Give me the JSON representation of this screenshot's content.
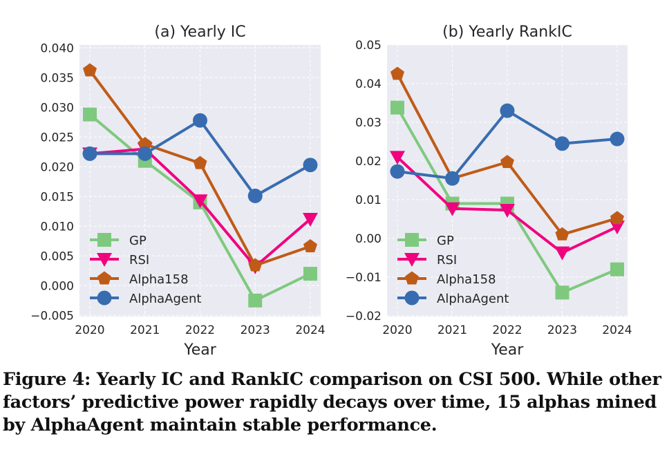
{
  "chart_data": [
    {
      "type": "line",
      "title": "(a) Yearly IC",
      "xlabel": "Year",
      "ylabel": "",
      "categories": [
        "2020",
        "2021",
        "2022",
        "2023",
        "2024"
      ],
      "ylim": [
        -0.0052,
        0.0405
      ],
      "yticks": [
        "−0.005",
        "0.000",
        "0.005",
        "0.010",
        "0.015",
        "0.020",
        "0.025",
        "0.030",
        "0.035",
        "0.040"
      ],
      "ytick_values": [
        -0.005,
        0,
        0.005,
        0.01,
        0.015,
        0.02,
        0.025,
        0.03,
        0.035,
        0.04
      ],
      "grid": true,
      "legend": "lower-left",
      "series": [
        {
          "name": "GP",
          "values": [
            0.0288,
            0.021,
            0.014,
            -0.0025,
            0.002
          ],
          "color": "#7fc97f",
          "marker": "square"
        },
        {
          "name": "RSI",
          "values": [
            0.0222,
            0.023,
            0.0143,
            0.0032,
            0.0112
          ],
          "color": "#f0027f",
          "marker": "triangle-down"
        },
        {
          "name": "Alpha158",
          "values": [
            0.0362,
            0.0238,
            0.0206,
            0.0034,
            0.0066
          ],
          "color": "#bf5b17",
          "marker": "pentagon"
        },
        {
          "name": "AlphaAgent",
          "values": [
            0.0222,
            0.0222,
            0.0278,
            0.0151,
            0.0203
          ],
          "color": "#386cb0",
          "marker": "circle"
        }
      ]
    },
    {
      "type": "line",
      "title": "(b) Yearly RankIC",
      "xlabel": "Year",
      "ylabel": "",
      "categories": [
        "2020",
        "2021",
        "2022",
        "2023",
        "2024"
      ],
      "ylim": [
        -0.0202,
        0.05
      ],
      "yticks": [
        "−0.02",
        "−0.01",
        "0.00",
        "0.01",
        "0.02",
        "0.03",
        "0.04",
        "0.05"
      ],
      "ytick_values": [
        -0.02,
        -0.01,
        0,
        0.01,
        0.02,
        0.03,
        0.04,
        0.05
      ],
      "grid": true,
      "legend": "lower-left",
      "series": [
        {
          "name": "GP",
          "values": [
            0.0338,
            0.009,
            0.009,
            -0.014,
            -0.008
          ],
          "color": "#7fc97f",
          "marker": "square"
        },
        {
          "name": "RSI",
          "values": [
            0.021,
            0.0077,
            0.0073,
            -0.0037,
            0.003
          ],
          "color": "#f0027f",
          "marker": "triangle-down"
        },
        {
          "name": "Alpha158",
          "values": [
            0.0425,
            0.0155,
            0.0197,
            0.001,
            0.0052
          ],
          "color": "#bf5b17",
          "marker": "pentagon"
        },
        {
          "name": "AlphaAgent",
          "values": [
            0.0173,
            0.0155,
            0.033,
            0.0245,
            0.0257
          ],
          "color": "#386cb0",
          "marker": "circle"
        }
      ]
    }
  ],
  "caption": "Figure 4: Yearly IC and RankIC comparison on CSI 500. While other factors’ predictive power rapidly decays over time, 15 alphas mined by AlphaAgent maintain stable performance."
}
